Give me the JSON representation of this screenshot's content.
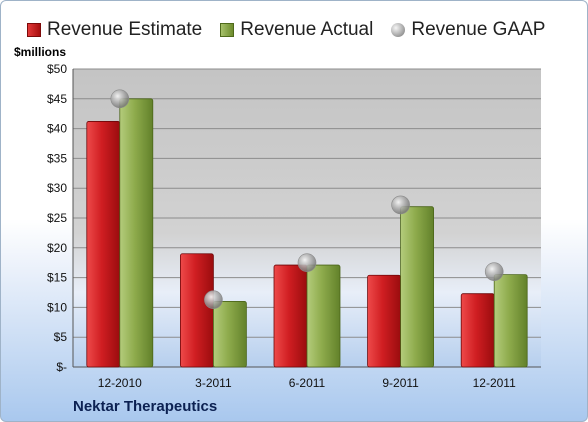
{
  "legend": {
    "estimate_label": "Revenue Estimate",
    "actual_label": "Revenue Actual",
    "gaap_label": "Revenue GAAP"
  },
  "unit_label": "$millions",
  "company": "Nektar Therapeutics",
  "colors": {
    "estimate": "#c8181c",
    "actual": "#8aa84a",
    "gaap": "#a0a0a0",
    "plot_bg": "#c9c9c9"
  },
  "chart_data": {
    "type": "bar",
    "categories": [
      "12-2010",
      "3-2011",
      "6-2011",
      "9-2011",
      "12-2011"
    ],
    "series": [
      {
        "name": "Revenue Estimate",
        "values": [
          41.2,
          19.0,
          17.1,
          15.4,
          12.3
        ]
      },
      {
        "name": "Revenue Actual",
        "values": [
          45.0,
          11.0,
          17.1,
          26.9,
          15.5
        ]
      },
      {
        "name": "Revenue GAAP",
        "type": "scatter",
        "values": [
          45.0,
          11.3,
          17.5,
          27.2,
          16.0
        ]
      }
    ],
    "ylim": [
      0,
      50
    ],
    "yticks": [
      0,
      5,
      10,
      15,
      20,
      25,
      30,
      35,
      40,
      45,
      50
    ],
    "ytick_labels": [
      "$-",
      "$5",
      "$10",
      "$15",
      "$20",
      "$25",
      "$30",
      "$35",
      "$40",
      "$45",
      "$50"
    ],
    "ylabel": "$millions",
    "grid": true,
    "legend_position": "top"
  }
}
